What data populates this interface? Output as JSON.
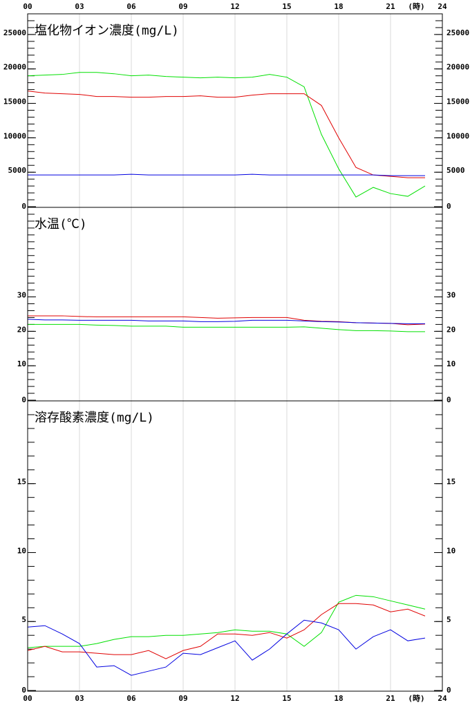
{
  "x_axis": {
    "xlim": [
      0,
      24
    ],
    "xticks": [
      {
        "value": 0,
        "label": "00"
      },
      {
        "value": 3,
        "label": "03"
      },
      {
        "value": 6,
        "label": "06"
      },
      {
        "value": 9,
        "label": "09"
      },
      12,
      15,
      18,
      21,
      24
    ],
    "unit": "(時)",
    "grid": true
  },
  "chart_data": [
    {
      "type": "line",
      "title": "塩化物イオン濃度(mg/L)",
      "x": [
        0,
        1,
        2,
        3,
        4,
        5,
        6,
        7,
        8,
        9,
        10,
        11,
        12,
        13,
        14,
        15,
        16,
        17,
        18,
        19,
        20,
        21,
        22,
        23
      ],
      "ylim": [
        0,
        28000
      ],
      "yticks": [
        0,
        5000,
        10000,
        15000,
        20000,
        25000
      ],
      "series": [
        {
          "color": "#00e000",
          "values": [
            19000,
            19100,
            19200,
            19500,
            19500,
            19300,
            19000,
            19100,
            18900,
            18800,
            18700,
            18800,
            18700,
            18800,
            19200,
            18800,
            17400,
            10500,
            5500,
            1400,
            2800,
            1900,
            1500,
            3000
          ]
        },
        {
          "color": "#e00000",
          "values": [
            16800,
            16500,
            16400,
            16300,
            16000,
            16000,
            15900,
            15900,
            16000,
            16000,
            16100,
            15900,
            15900,
            16200,
            16400,
            16400,
            16400,
            14700,
            10000,
            5700,
            4600,
            4400,
            4200,
            4200
          ]
        },
        {
          "color": "#0000e0",
          "values": [
            4600,
            4600,
            4600,
            4600,
            4600,
            4600,
            4700,
            4600,
            4600,
            4600,
            4600,
            4600,
            4600,
            4700,
            4600,
            4600,
            4600,
            4600,
            4600,
            4600,
            4600,
            4500,
            4500,
            4500
          ]
        }
      ]
    },
    {
      "type": "line",
      "title": "水温(℃)",
      "x": [
        0,
        1,
        2,
        3,
        4,
        5,
        6,
        7,
        8,
        9,
        10,
        11,
        12,
        13,
        14,
        15,
        16,
        17,
        18,
        19,
        20,
        21,
        22,
        23
      ],
      "ylim": [
        0,
        56
      ],
      "yticks": [
        0,
        10,
        20,
        30
      ],
      "series": [
        {
          "color": "#e00000",
          "values": [
            24.5,
            24.5,
            24.5,
            24.3,
            24.2,
            24.2,
            24.2,
            24.2,
            24.2,
            24.2,
            24.0,
            23.8,
            23.9,
            24.0,
            24.0,
            24.0,
            23.2,
            22.9,
            22.8,
            22.5,
            22.4,
            22.3,
            21.9,
            22.1
          ]
        },
        {
          "color": "#0000e0",
          "values": [
            23.5,
            23.3,
            23.3,
            23.2,
            23.2,
            23.2,
            23.2,
            23.0,
            23.0,
            23.0,
            22.8,
            22.8,
            22.9,
            23.2,
            23.2,
            23.2,
            23.0,
            22.8,
            22.7,
            22.5,
            22.4,
            22.3,
            22.2,
            22.2
          ]
        },
        {
          "color": "#00e000",
          "values": [
            22.0,
            22.0,
            22.0,
            22.0,
            21.8,
            21.7,
            21.5,
            21.5,
            21.5,
            21.2,
            21.2,
            21.2,
            21.2,
            21.2,
            21.2,
            21.2,
            21.3,
            20.9,
            20.5,
            20.2,
            20.2,
            20.1,
            19.9,
            19.9
          ]
        }
      ]
    },
    {
      "type": "line",
      "title": "溶存酸素濃度(mg/L)",
      "x": [
        0,
        1,
        2,
        3,
        4,
        5,
        6,
        7,
        8,
        9,
        10,
        11,
        12,
        13,
        14,
        15,
        16,
        17,
        18,
        19,
        20,
        21,
        22,
        23
      ],
      "ylim": [
        0,
        21
      ],
      "yticks": [
        0,
        5,
        10,
        15
      ],
      "series": [
        {
          "color": "#00e000",
          "values": [
            3.1,
            3.2,
            3.2,
            3.2,
            3.4,
            3.7,
            3.9,
            3.9,
            4.0,
            4.0,
            4.1,
            4.2,
            4.4,
            4.3,
            4.3,
            4.1,
            3.2,
            4.2,
            6.4,
            6.9,
            6.8,
            6.5,
            6.2,
            5.9
          ]
        },
        {
          "color": "#e00000",
          "values": [
            2.9,
            3.2,
            2.8,
            2.8,
            2.7,
            2.6,
            2.6,
            2.9,
            2.3,
            2.9,
            3.2,
            4.1,
            4.1,
            4.0,
            4.2,
            3.8,
            4.4,
            5.5,
            6.3,
            6.3,
            6.2,
            5.7,
            5.9,
            5.4
          ]
        },
        {
          "color": "#0000e0",
          "values": [
            4.6,
            4.7,
            4.1,
            3.4,
            1.7,
            1.8,
            1.1,
            1.4,
            1.7,
            2.7,
            2.6,
            3.1,
            3.6,
            2.2,
            3.0,
            4.1,
            5.1,
            4.9,
            4.4,
            3.0,
            3.9,
            4.4,
            3.6,
            3.8
          ]
        }
      ]
    }
  ]
}
